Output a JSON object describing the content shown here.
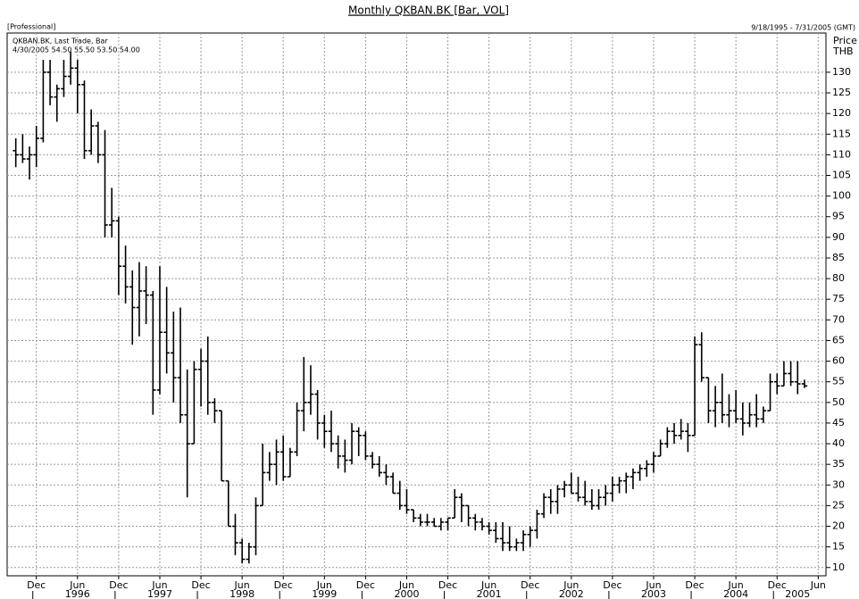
{
  "chart_data": {
    "type": "ohlc",
    "title": "Monthly QKBAN.BK [Bar, VOL]",
    "edition": "[Professional]",
    "date_range": "9/18/1995 - 7/31/2005 (GMT)",
    "legend_name": "QKBAN.BK, Last Trade, Bar",
    "legend_info": "4/30/2005 54.50 55.50 53.50 54.00",
    "y_axis_label": "Price",
    "y_axis_unit": "THB",
    "color": "#000000",
    "grid": true,
    "x": [
      "1995-09",
      "1995-10",
      "1995-11",
      "1995-12",
      "1996-01",
      "1996-02",
      "1996-03",
      "1996-04",
      "1996-05",
      "1996-06",
      "1996-07",
      "1996-08",
      "1996-09",
      "1996-10",
      "1996-11",
      "1996-12",
      "1997-01",
      "1997-02",
      "1997-03",
      "1997-04",
      "1997-05",
      "1997-06",
      "1997-07",
      "1997-08",
      "1997-09",
      "1997-10",
      "1997-11",
      "1997-12",
      "1998-01",
      "1998-02",
      "1998-03",
      "1998-04",
      "1998-05",
      "1998-06",
      "1998-07",
      "1998-08",
      "1998-09",
      "1998-10",
      "1998-11",
      "1998-12",
      "1999-01",
      "1999-02",
      "1999-03",
      "1999-04",
      "1999-05",
      "1999-06",
      "1999-07",
      "1999-08",
      "1999-09",
      "1999-10",
      "1999-11",
      "1999-12",
      "2000-01",
      "2000-02",
      "2000-03",
      "2000-04",
      "2000-05",
      "2000-06",
      "2000-07",
      "2000-08",
      "2000-09",
      "2000-10",
      "2000-11",
      "2000-12",
      "2001-01",
      "2001-02",
      "2001-03",
      "2001-04",
      "2001-05",
      "2001-06",
      "2001-07",
      "2001-08",
      "2001-09",
      "2001-10",
      "2001-11",
      "2001-12",
      "2002-01",
      "2002-02",
      "2002-03",
      "2002-04",
      "2002-05",
      "2002-06",
      "2002-07",
      "2002-08",
      "2002-09",
      "2002-10",
      "2002-11",
      "2002-12",
      "2003-01",
      "2003-02",
      "2003-03",
      "2003-04",
      "2003-05",
      "2003-06",
      "2003-07",
      "2003-08",
      "2003-09",
      "2003-10",
      "2003-11",
      "2003-12",
      "2004-01",
      "2004-02",
      "2004-03",
      "2004-04",
      "2004-05",
      "2004-06",
      "2004-07",
      "2004-08",
      "2004-09",
      "2004-10",
      "2004-11",
      "2004-12",
      "2005-01",
      "2005-02",
      "2005-03",
      "2005-04"
    ],
    "open": [
      111,
      110,
      109,
      110,
      114,
      130,
      124,
      126,
      129,
      131,
      127,
      111,
      117,
      110,
      93,
      94,
      83,
      78,
      73,
      77,
      76,
      53,
      67,
      62,
      56,
      47,
      40,
      58,
      60,
      50,
      48,
      31,
      20,
      16,
      12,
      15,
      25,
      33,
      35,
      38,
      32,
      38,
      48,
      50,
      52,
      45,
      43,
      40,
      37,
      36,
      43,
      42,
      37,
      35,
      33,
      32,
      28,
      25,
      24,
      22,
      21,
      21,
      20,
      21,
      22,
      27,
      25,
      22,
      21,
      20,
      19,
      17,
      16,
      15,
      16,
      18,
      19,
      23,
      27,
      26,
      29,
      30,
      28,
      27,
      26,
      25,
      27,
      28,
      30,
      31,
      32,
      33,
      34,
      35,
      37,
      40,
      43,
      42,
      43,
      42,
      64,
      56,
      48,
      50,
      47,
      48,
      46,
      45,
      47,
      46,
      48,
      55,
      54,
      57,
      55,
      54.5
    ],
    "high": [
      114,
      115,
      112,
      117,
      133,
      133,
      127,
      133,
      135,
      133,
      128,
      121,
      118,
      116,
      102,
      95,
      88,
      82,
      84,
      83,
      77,
      83,
      78,
      72,
      73,
      58,
      60,
      63,
      66,
      51,
      48,
      31,
      23,
      17,
      16,
      27,
      40,
      38,
      41,
      42,
      39,
      50,
      61,
      59,
      53,
      47,
      48,
      42,
      41,
      45,
      44,
      43,
      38,
      37,
      35,
      33,
      31,
      29,
      24,
      23,
      23,
      22,
      22,
      22,
      29,
      28,
      25,
      23,
      22,
      21,
      21,
      21,
      20,
      17,
      19,
      20,
      24,
      28,
      29,
      30,
      31,
      33,
      32,
      31,
      29,
      29,
      30,
      32,
      32,
      33,
      34,
      35,
      36,
      38,
      41,
      44,
      45,
      46,
      45,
      66,
      67,
      56,
      54,
      57,
      52,
      53,
      50,
      50,
      52,
      49,
      57,
      57,
      60,
      60,
      60,
      55.5
    ],
    "low": [
      107,
      108,
      104,
      107,
      113,
      122,
      118,
      124,
      127,
      120,
      109,
      110,
      108,
      90,
      90,
      76,
      74,
      64,
      66,
      69,
      47,
      52,
      57,
      50,
      45,
      27,
      40,
      49,
      47,
      45,
      31,
      20,
      13,
      11,
      11,
      13,
      25,
      31,
      30,
      31,
      32,
      37,
      43,
      47,
      41,
      39,
      38,
      34,
      33,
      35,
      37,
      36,
      34,
      32,
      30,
      28,
      24,
      23,
      21,
      20,
      20,
      20,
      19,
      19,
      22,
      21,
      20,
      19,
      19,
      18,
      16,
      14,
      14,
      14,
      14,
      15,
      17,
      22,
      23,
      23,
      27,
      28,
      26,
      25,
      24,
      24,
      25,
      26,
      28,
      28,
      29,
      31,
      32,
      33,
      37,
      39,
      40,
      41,
      38,
      42,
      55,
      45,
      44,
      45,
      44,
      45,
      42,
      44,
      44,
      45,
      48,
      52,
      54,
      54,
      52,
      53.5
    ],
    "close": [
      110,
      109,
      110,
      114,
      130,
      124,
      126,
      129,
      131,
      127,
      111,
      117,
      110,
      93,
      94,
      83,
      78,
      73,
      77,
      76,
      53,
      67,
      62,
      56,
      47,
      40,
      58,
      60,
      50,
      48,
      31,
      20,
      16,
      12,
      15,
      25,
      33,
      35,
      38,
      32,
      38,
      48,
      50,
      52,
      45,
      43,
      40,
      37,
      36,
      43,
      42,
      37,
      35,
      33,
      32,
      28,
      25,
      24,
      22,
      21,
      21,
      20,
      21,
      22,
      27,
      25,
      22,
      21,
      20,
      19,
      17,
      16,
      15,
      16,
      18,
      19,
      23,
      27,
      26,
      29,
      30,
      28,
      27,
      26,
      25,
      27,
      28,
      30,
      31,
      32,
      33,
      34,
      35,
      37,
      40,
      43,
      42,
      43,
      42,
      64,
      56,
      48,
      50,
      47,
      48,
      46,
      45,
      47,
      46,
      48,
      55,
      54,
      57,
      55,
      54.5,
      54
    ],
    "xlim": [
      "1995-08",
      "2005-07"
    ],
    "ylim": [
      8,
      139.5
    ],
    "yticks": [
      10,
      15,
      20,
      25,
      30,
      35,
      40,
      45,
      50,
      55,
      60,
      65,
      70,
      75,
      80,
      85,
      90,
      95,
      100,
      105,
      110,
      115,
      120,
      125,
      130
    ],
    "xticks": [
      {
        "value": "1995-12",
        "label": "Dec"
      },
      {
        "value": "1996-06",
        "label": "Jun"
      },
      {
        "value": "1996-12",
        "label": "Dec"
      },
      {
        "value": "1997-06",
        "label": "Jun"
      },
      {
        "value": "1997-12",
        "label": "Dec"
      },
      {
        "value": "1998-06",
        "label": "Jun"
      },
      {
        "value": "1998-12",
        "label": "Dec"
      },
      {
        "value": "1999-06",
        "label": "Jun"
      },
      {
        "value": "1999-12",
        "label": "Dec"
      },
      {
        "value": "2000-06",
        "label": "Jun"
      },
      {
        "value": "2000-12",
        "label": "Dec"
      },
      {
        "value": "2001-06",
        "label": "Jun"
      },
      {
        "value": "2001-12",
        "label": "Dec"
      },
      {
        "value": "2002-06",
        "label": "Jun"
      },
      {
        "value": "2002-12",
        "label": "Dec"
      },
      {
        "value": "2003-06",
        "label": "Jun"
      },
      {
        "value": "2003-12",
        "label": "Dec"
      },
      {
        "value": "2004-06",
        "label": "Jun"
      },
      {
        "value": "2004-12",
        "label": "Dec"
      },
      {
        "value": "2005-06",
        "label": "Jun"
      }
    ],
    "year_labels": [
      {
        "value": "1996-06",
        "label": "1996"
      },
      {
        "value": "1997-06",
        "label": "1997"
      },
      {
        "value": "1998-06",
        "label": "1998"
      },
      {
        "value": "1999-06",
        "label": "1999"
      },
      {
        "value": "2000-06",
        "label": "2000"
      },
      {
        "value": "2001-06",
        "label": "2001"
      },
      {
        "value": "2002-06",
        "label": "2002"
      },
      {
        "value": "2003-06",
        "label": "2003"
      },
      {
        "value": "2004-06",
        "label": "2004"
      },
      {
        "value": "2005-03",
        "label": "2005"
      }
    ]
  }
}
